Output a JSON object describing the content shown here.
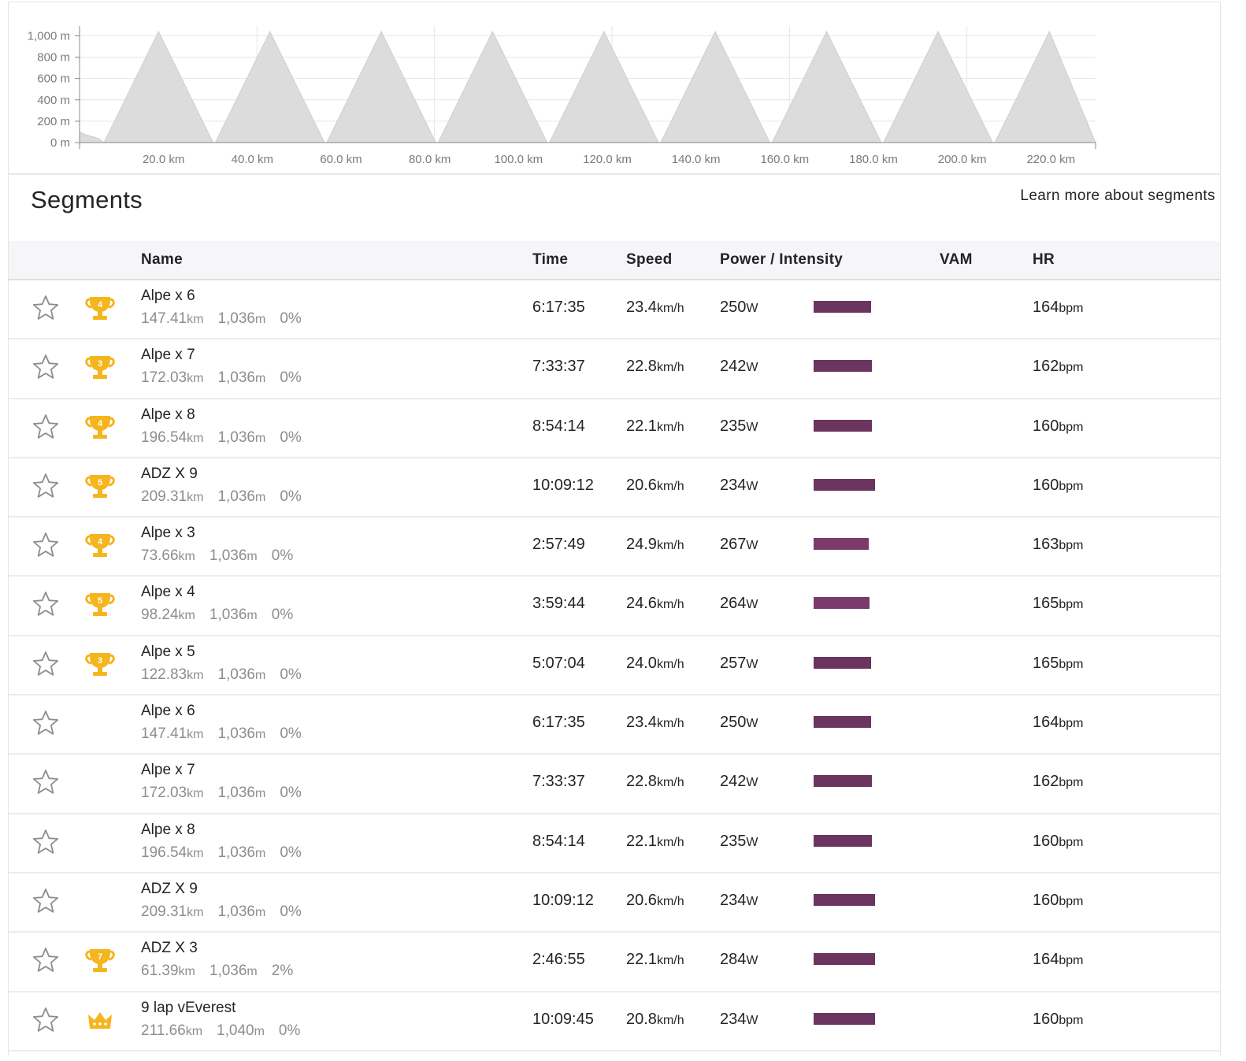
{
  "elevation_chart": {
    "y_ticks": [
      "1,000 m",
      "800 m",
      "600 m",
      "400 m",
      "200 m",
      "0 m"
    ],
    "x_ticks": [
      "20.0 km",
      "40.0 km",
      "60.0 km",
      "80.0 km",
      "100.0 km",
      "120.0 km",
      "140.0 km",
      "160.0 km",
      "180.0 km",
      "200.0 km",
      "220.0 km"
    ],
    "fill_color": "#dcdcdc"
  },
  "chart_data": {
    "type": "area",
    "xlabel": "",
    "ylabel": "",
    "x_unit": "km",
    "y_unit": "m",
    "xlim": [
      0,
      229
    ],
    "ylim": [
      0,
      1040
    ],
    "grid": true,
    "x": [
      0,
      1,
      2.5,
      4.2,
      5.5,
      17.8,
      30.1,
      30.6,
      42.9,
      55.2,
      55.7,
      68.0,
      80.3,
      80.8,
      93.1,
      105.4,
      105.9,
      118.2,
      130.5,
      131.0,
      143.3,
      155.6,
      156.1,
      168.4,
      180.7,
      181.2,
      193.5,
      205.8,
      206.3,
      218.6,
      229
    ],
    "y": [
      100,
      80,
      60,
      40,
      0,
      1040,
      0,
      0,
      1040,
      0,
      0,
      1040,
      0,
      0,
      1040,
      0,
      0,
      1040,
      0,
      0,
      1040,
      0,
      0,
      1040,
      0,
      0,
      1040,
      0,
      0,
      1040,
      0
    ]
  },
  "segments": {
    "title": "Segments",
    "learn_more": "Learn more about segments",
    "headers": {
      "name": "Name",
      "time": "Time",
      "speed": "Speed",
      "power": "Power / Intensity",
      "vam": "VAM",
      "hr": "HR"
    },
    "units": {
      "distance": "km",
      "elev": "m",
      "speed": "km/h",
      "power": "W",
      "hr": "bpm"
    },
    "colors": {
      "trophy": "#f5b51d",
      "intensity_dark": "#6b3560",
      "intensity_light": "#7a3b6c"
    },
    "rows": [
      {
        "name": "Alpe x 6",
        "dist": "147.41",
        "elev": "1,036",
        "grade": "0%",
        "time": "6:17:35",
        "speed": "23.4",
        "power": "250",
        "hr": "164",
        "award": "trophy",
        "rank": "4",
        "intensity": 0.73
      },
      {
        "name": "Alpe x 7",
        "dist": "172.03",
        "elev": "1,036",
        "grade": "0%",
        "time": "7:33:37",
        "speed": "22.8",
        "power": "242",
        "hr": "162",
        "award": "trophy",
        "rank": "3",
        "intensity": 0.74
      },
      {
        "name": "Alpe x 8",
        "dist": "196.54",
        "elev": "1,036",
        "grade": "0%",
        "time": "8:54:14",
        "speed": "22.1",
        "power": "235",
        "hr": "160",
        "award": "trophy",
        "rank": "4",
        "intensity": 0.74
      },
      {
        "name": "ADZ X 9",
        "dist": "209.31",
        "elev": "1,036",
        "grade": "0%",
        "time": "10:09:12",
        "speed": "20.6",
        "power": "234",
        "hr": "160",
        "award": "trophy",
        "rank": "5",
        "intensity": 0.78
      },
      {
        "name": "Alpe x 3",
        "dist": "73.66",
        "elev": "1,036",
        "grade": "0%",
        "time": "2:57:49",
        "speed": "24.9",
        "power": "267",
        "hr": "163",
        "award": "trophy",
        "rank": "4",
        "intensity": 0.7
      },
      {
        "name": "Alpe x 4",
        "dist": "98.24",
        "elev": "1,036",
        "grade": "0%",
        "time": "3:59:44",
        "speed": "24.6",
        "power": "264",
        "hr": "165",
        "award": "trophy",
        "rank": "5",
        "intensity": 0.71
      },
      {
        "name": "Alpe x 5",
        "dist": "122.83",
        "elev": "1,036",
        "grade": "0%",
        "time": "5:07:04",
        "speed": "24.0",
        "power": "257",
        "hr": "165",
        "award": "trophy",
        "rank": "3",
        "intensity": 0.73
      },
      {
        "name": "Alpe x 6",
        "dist": "147.41",
        "elev": "1,036",
        "grade": "0%",
        "time": "6:17:35",
        "speed": "23.4",
        "power": "250",
        "hr": "164",
        "award": "none",
        "rank": "",
        "intensity": 0.73
      },
      {
        "name": "Alpe x 7",
        "dist": "172.03",
        "elev": "1,036",
        "grade": "0%",
        "time": "7:33:37",
        "speed": "22.8",
        "power": "242",
        "hr": "162",
        "award": "none",
        "rank": "",
        "intensity": 0.74
      },
      {
        "name": "Alpe x 8",
        "dist": "196.54",
        "elev": "1,036",
        "grade": "0%",
        "time": "8:54:14",
        "speed": "22.1",
        "power": "235",
        "hr": "160",
        "award": "none",
        "rank": "",
        "intensity": 0.74
      },
      {
        "name": "ADZ X 9",
        "dist": "209.31",
        "elev": "1,036",
        "grade": "0%",
        "time": "10:09:12",
        "speed": "20.6",
        "power": "234",
        "hr": "160",
        "award": "none",
        "rank": "",
        "intensity": 0.78
      },
      {
        "name": "ADZ X 3",
        "dist": "61.39",
        "elev": "1,036",
        "grade": "2%",
        "time": "2:46:55",
        "speed": "22.1",
        "power": "284",
        "hr": "164",
        "award": "trophy",
        "rank": "7",
        "intensity": 0.78
      },
      {
        "name": "9 lap vEverest",
        "dist": "211.66",
        "elev": "1,040",
        "grade": "0%",
        "time": "10:09:45",
        "speed": "20.8",
        "power": "234",
        "hr": "160",
        "award": "crown",
        "rank": "",
        "intensity": 0.78
      }
    ]
  }
}
